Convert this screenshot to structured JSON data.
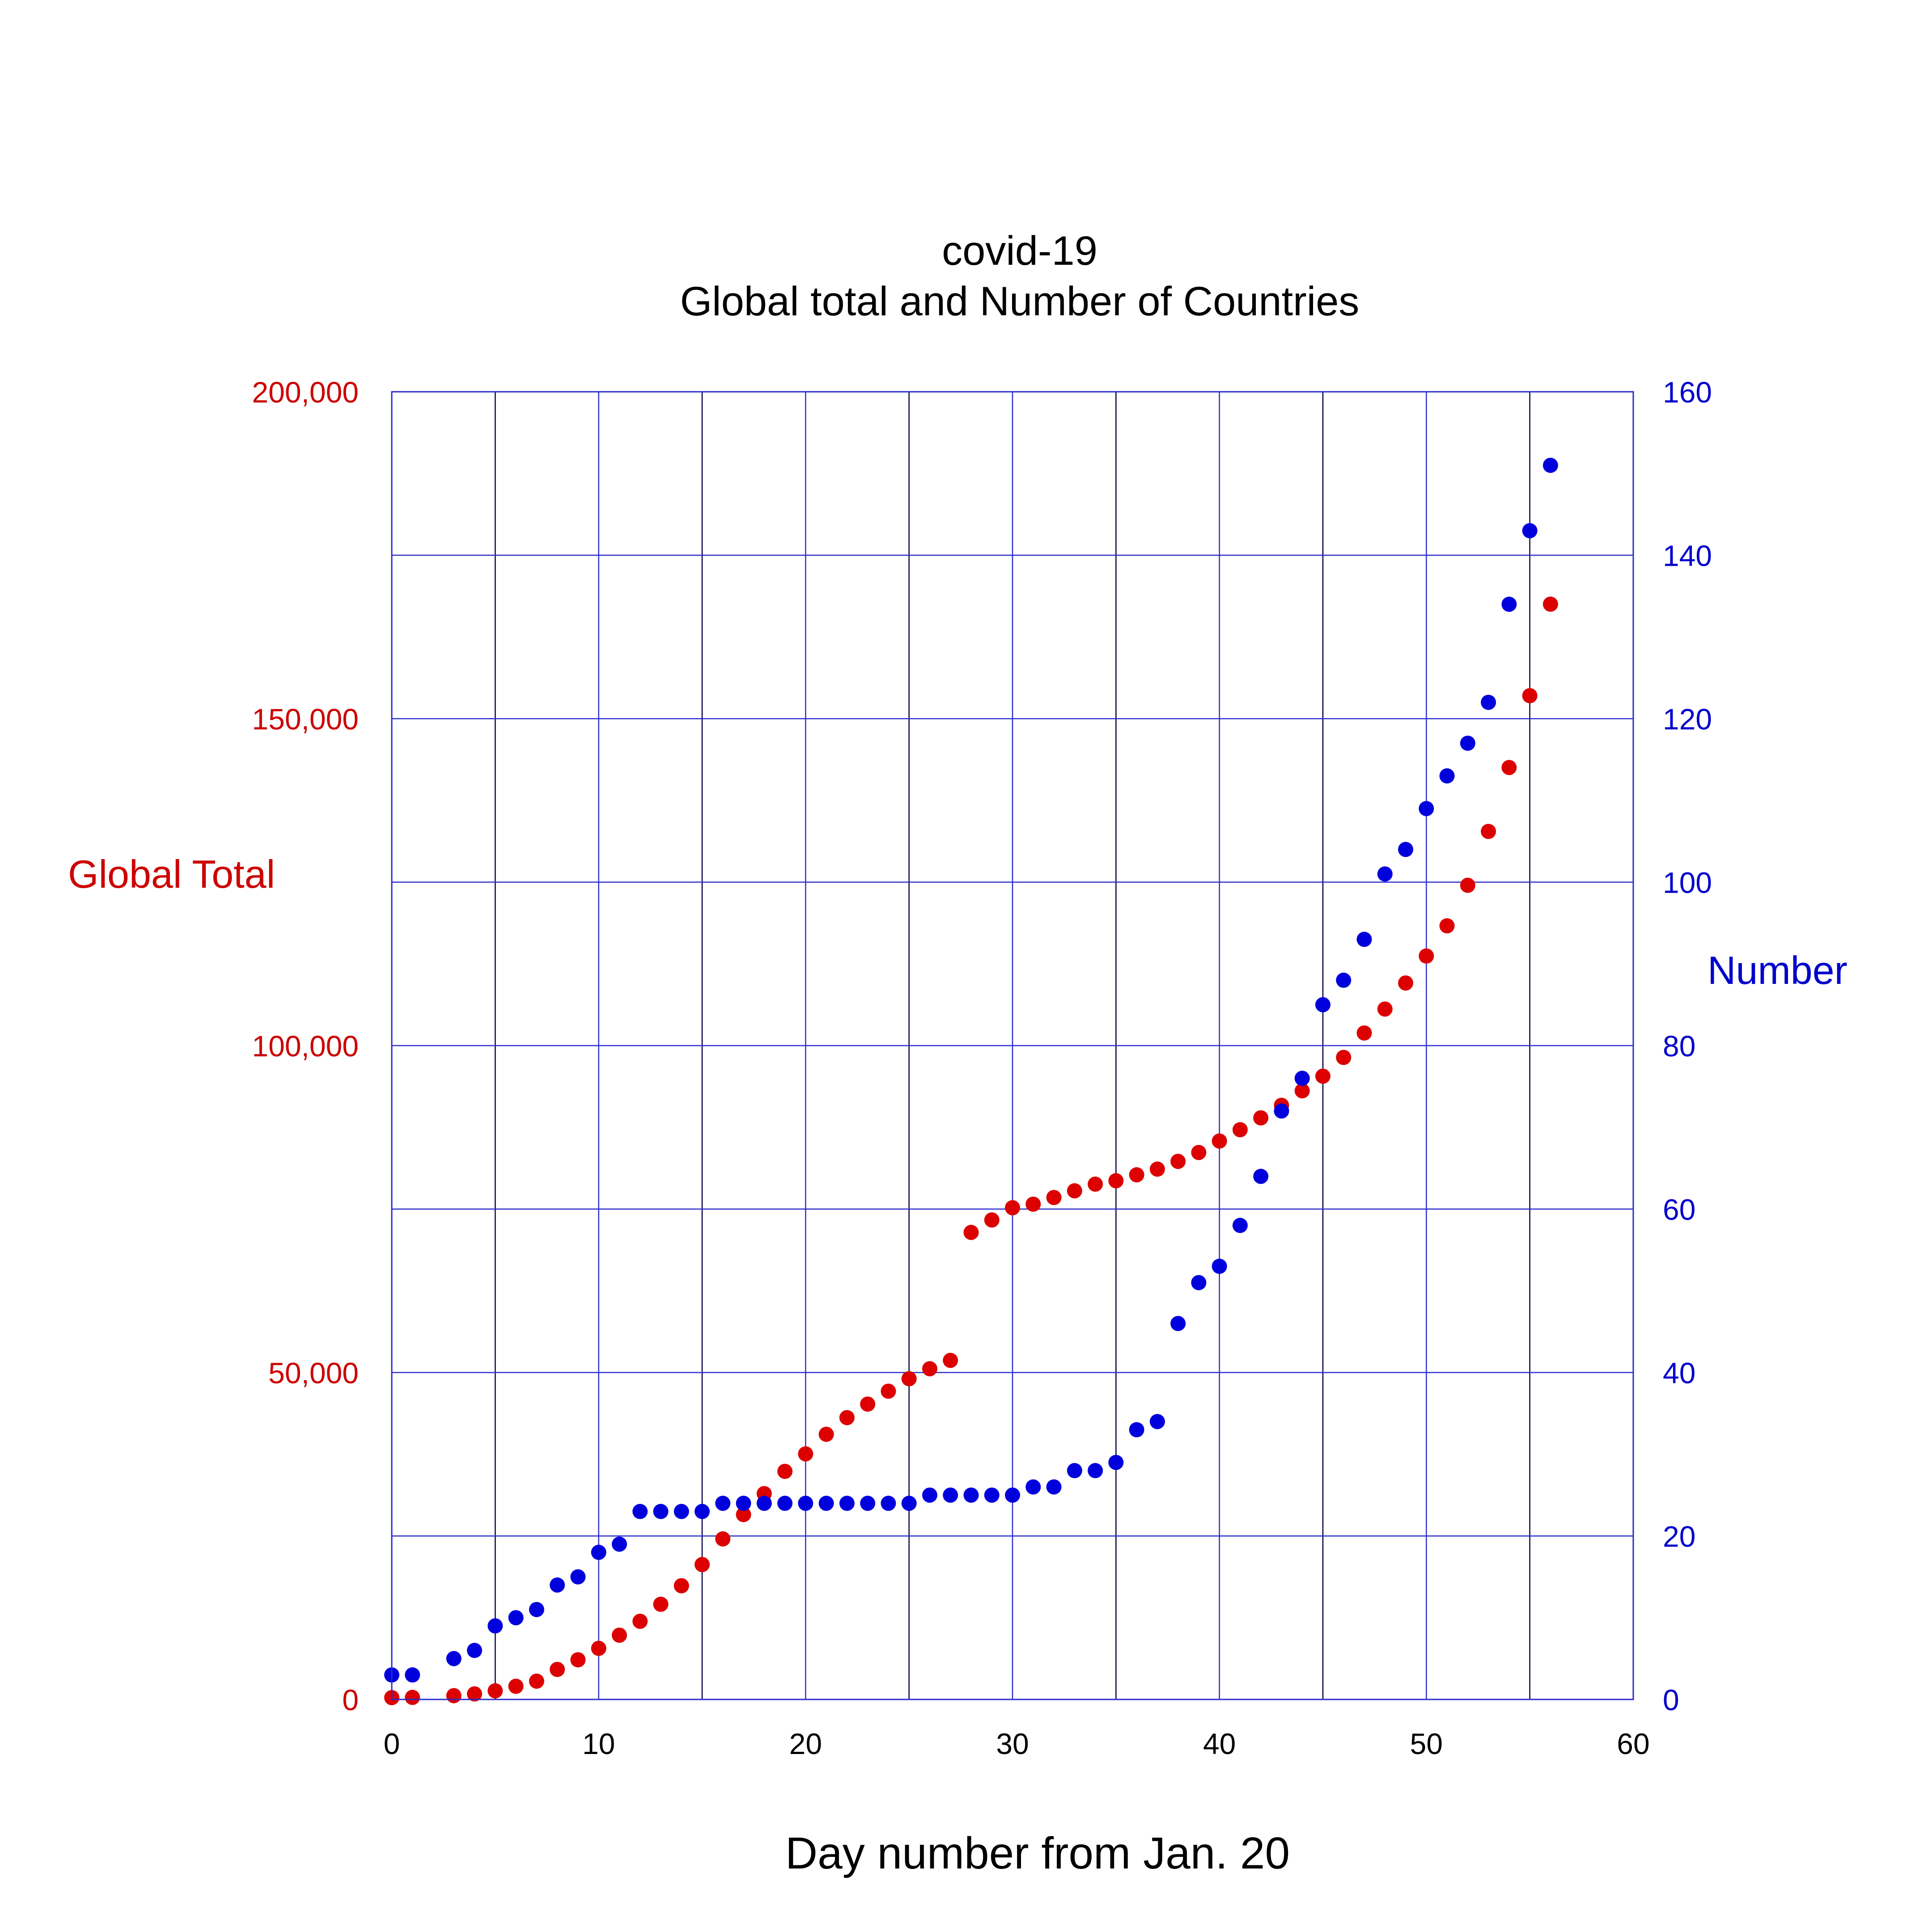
{
  "chart_data": {
    "type": "scatter",
    "title": "covid-19",
    "subtitle": "Global total and Number of Countries",
    "xlabel": "Day number from Jan. 20",
    "ylabel_left": "Global Total",
    "ylabel_right": "Number",
    "xlim": [
      0,
      60
    ],
    "ylim_left": [
      0,
      200000
    ],
    "ylim_right": [
      0,
      160
    ],
    "x_ticks": [
      0,
      10,
      20,
      30,
      40,
      50,
      60
    ],
    "y_left_ticks": [
      0,
      50000,
      100000,
      150000,
      200000
    ],
    "y_left_tick_labels": [
      "0",
      "50,000",
      "100,000",
      "150,000",
      "200,000"
    ],
    "y_right_ticks": [
      0,
      20,
      40,
      60,
      80,
      100,
      120,
      140,
      160
    ],
    "grid": true,
    "colors": {
      "left": "#cc0000",
      "right": "#0000cc",
      "grid_v": "#000044",
      "grid_h": "#2a2acc"
    },
    "series": [
      {
        "axis": "left",
        "color": "#dd0000",
        "x": [
          0,
          1,
          3,
          4,
          5,
          6,
          7,
          8,
          9,
          10,
          11,
          12,
          13,
          14,
          15,
          16,
          17,
          18,
          19,
          20,
          21,
          22,
          23,
          24,
          25,
          26,
          27,
          28,
          29,
          30,
          31,
          32,
          33,
          34,
          35,
          36,
          37,
          38,
          39,
          40,
          41,
          42,
          43,
          44,
          45,
          46,
          47,
          48,
          49,
          50,
          51,
          52,
          53,
          54,
          55,
          56
        ],
        "values": [
          282,
          314,
          581,
          846,
          1320,
          2014,
          2798,
          4593,
          6065,
          7818,
          9826,
          11953,
          14557,
          17391,
          20630,
          24554,
          28276,
          31481,
          34886,
          37558,
          40554,
          43103,
          45171,
          47147,
          49053,
          50580,
          51857,
          71429,
          73332,
          75204,
          75748,
          76769,
          77794,
          78811,
          79331,
          80239,
          81109,
          82294,
          83652,
          85403,
          87137,
          88948,
          90870,
          93090,
          95324,
          98192,
          101927,
          105592,
          109577,
          113702,
          118319,
          124518,
          132758,
          142534,
          153517,
          167515
        ]
      },
      {
        "axis": "right",
        "color": "#0000dd",
        "x": [
          0,
          1,
          3,
          4,
          5,
          6,
          7,
          8,
          9,
          10,
          11,
          12,
          13,
          14,
          15,
          16,
          17,
          18,
          19,
          20,
          21,
          22,
          23,
          24,
          25,
          26,
          27,
          28,
          29,
          30,
          31,
          32,
          33,
          34,
          35,
          36,
          37,
          38,
          39,
          40,
          41,
          42,
          43,
          44,
          45,
          46,
          47,
          48,
          49,
          50,
          51,
          52,
          53,
          54,
          55,
          56
        ],
        "values": [
          3,
          3,
          5,
          6,
          9,
          10,
          11,
          14,
          15,
          18,
          19,
          23,
          23,
          23,
          23,
          24,
          24,
          24,
          24,
          24,
          24,
          24,
          24,
          24,
          24,
          25,
          25,
          25,
          25,
          25,
          26,
          26,
          28,
          28,
          29,
          33,
          34,
          46,
          51,
          53,
          58,
          64,
          72,
          76,
          85,
          88,
          93,
          101,
          104,
          109,
          113,
          117,
          122,
          134,
          143,
          151
        ]
      }
    ]
  }
}
